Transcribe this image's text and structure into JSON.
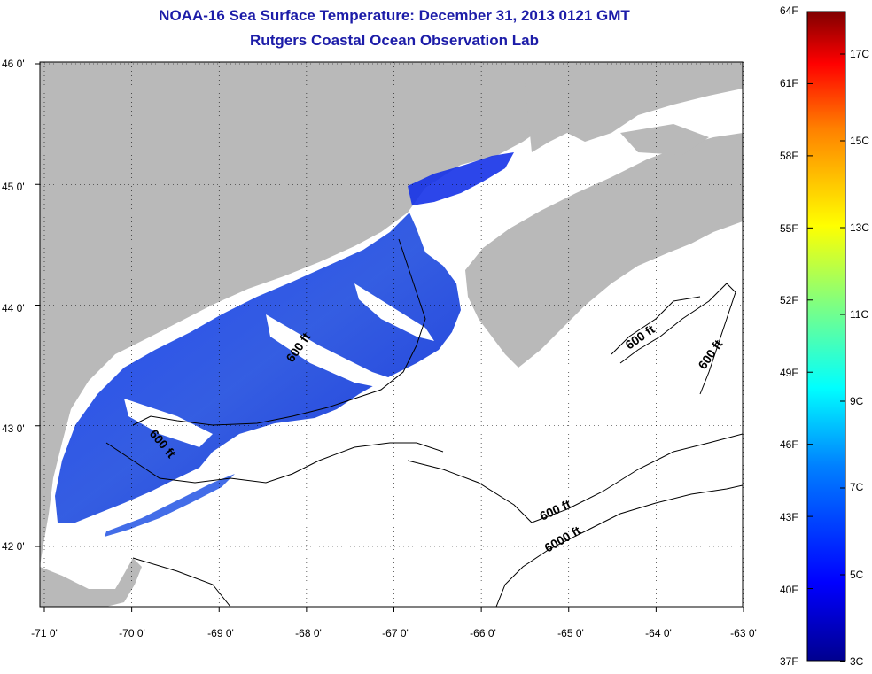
{
  "title": "NOAA-16 Sea Surface Temperature:  December 31, 2013 0121 GMT",
  "subtitle": "Rutgers Coastal Ocean Observation Lab",
  "lon_labels": [
    "-71 0'",
    "-70 0'",
    "-69 0'",
    "-68 0'",
    "-67 0'",
    "-66 0'",
    "-65 0'",
    "-64 0'",
    "-63 0'"
  ],
  "lat_labels": [
    "46 0'",
    "45 0'",
    "44 0'",
    "43 0'",
    "42 0'"
  ],
  "lon_values": [
    -71,
    -70,
    -69,
    -68,
    -67,
    -66,
    -65,
    -64,
    -63
  ],
  "lat_values": [
    46,
    45,
    44,
    43,
    42
  ],
  "depth_labels": [
    "600 ft",
    "600 ft",
    "600 ft",
    "600 ft",
    "600 ft",
    "6000 ft"
  ],
  "colorbar": {
    "f_labels": [
      "64F",
      "61F",
      "58F",
      "55F",
      "52F",
      "49F",
      "46F",
      "43F",
      "40F",
      "37F"
    ],
    "c_labels": [
      "17C",
      "15C",
      "13C",
      "11C",
      "9C",
      "7C",
      "5C",
      "3C"
    ]
  },
  "colors": {
    "land": "#b9b9b9",
    "ocean": "#ffffff",
    "sst_cold": "#0a1fd8",
    "title": "#1c1ca8"
  }
}
